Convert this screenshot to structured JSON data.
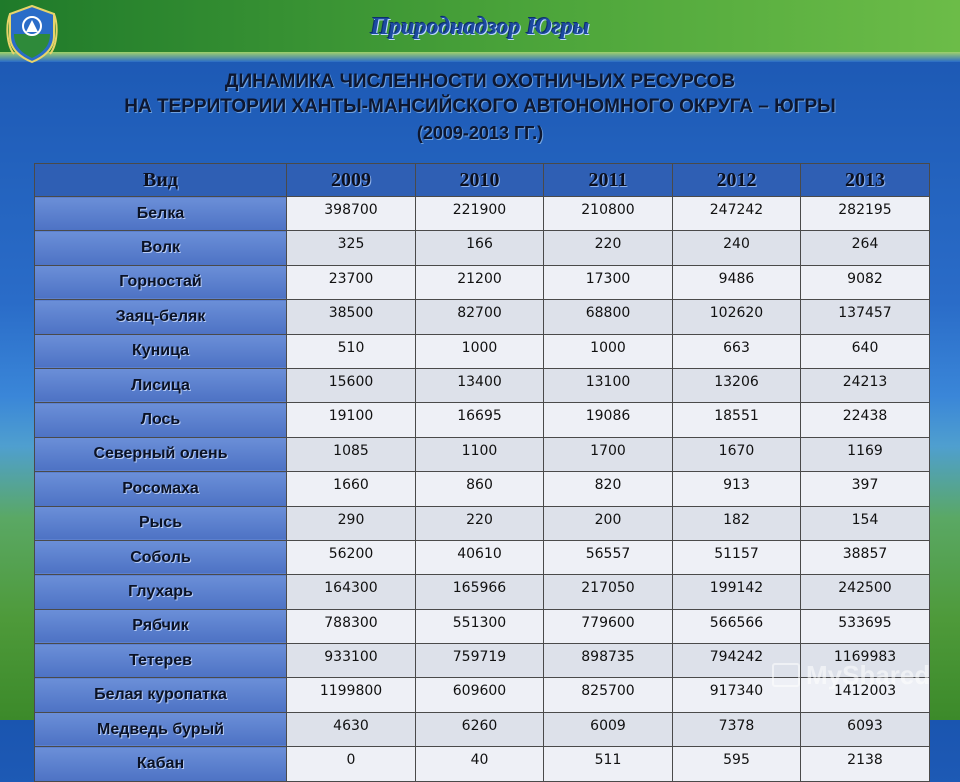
{
  "header": {
    "title": "Природнадзор Югры"
  },
  "title": {
    "line1": "ДИНАМИКА ЧИСЛЕННОСТИ ОХОТНИЧЬИХ РЕСУРСОВ",
    "line2": "НА ТЕРРИТОРИИ ХАНТЫ-МАНСИЙСКОГО АВТОНОМНОГО ОКРУГА – ЮГРЫ",
    "line3": "(2009-2013 ГГ.)"
  },
  "table": {
    "headers": [
      "Вид",
      "2009",
      "2010",
      "2011",
      "2012",
      "2013"
    ],
    "rows": [
      [
        "Белка",
        "398700",
        "221900",
        "210800",
        "247242",
        "282195"
      ],
      [
        "Волк",
        "325",
        "166",
        "220",
        "240",
        "264"
      ],
      [
        "Горностай",
        "23700",
        "21200",
        "17300",
        "9486",
        "9082"
      ],
      [
        "Заяц-беляк",
        "38500",
        "82700",
        "68800",
        "102620",
        "137457"
      ],
      [
        "Куница",
        "510",
        "1000",
        "1000",
        "663",
        "640"
      ],
      [
        "Лисица",
        "15600",
        "13400",
        "13100",
        "13206",
        "24213"
      ],
      [
        "Лось",
        "19100",
        "16695",
        "19086",
        "18551",
        "22438"
      ],
      [
        "Северный олень",
        "1085",
        "1100",
        "1700",
        "1670",
        "1169"
      ],
      [
        "Росомаха",
        "1660",
        "860",
        "820",
        "913",
        "397"
      ],
      [
        "Рысь",
        "290",
        "220",
        "200",
        "182",
        "154"
      ],
      [
        "Соболь",
        "56200",
        "40610",
        "56557",
        "51157",
        "38857"
      ],
      [
        "Глухарь",
        "164300",
        "165966",
        "217050",
        "199142",
        "242500"
      ],
      [
        "Рябчик",
        "788300",
        "551300",
        "779600",
        "566566",
        "533695"
      ],
      [
        "Тетерев",
        "933100",
        "759719",
        "898735",
        "794242",
        "1169983"
      ],
      [
        "Белая куропатка",
        "1199800",
        "609600",
        "825700",
        "917340",
        "1412003"
      ],
      [
        "Медведь бурый",
        "4630",
        "6260",
        "6009",
        "7378",
        "6093"
      ],
      [
        "Кабан",
        "0",
        "40",
        "511",
        "595",
        "2138"
      ]
    ]
  },
  "watermark": {
    "text": "MyShared"
  },
  "colors": {
    "header_cell": "#2f5fb4",
    "name_cell": "#5a7fcc",
    "value_cell": "#eef0f6"
  }
}
